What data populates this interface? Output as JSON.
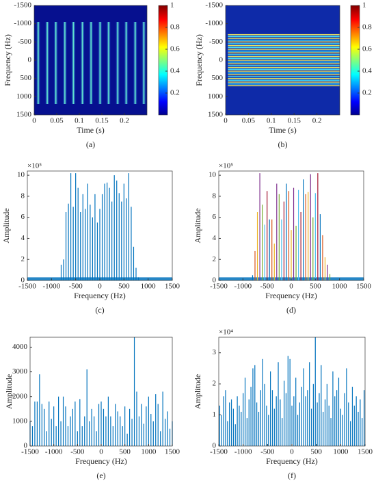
{
  "chart_data": [
    {
      "type": "heatmap",
      "label": "(a)",
      "xlabel": "Time (s)",
      "ylabel": "Frequency (Hz)",
      "xlim": [
        0,
        0.25
      ],
      "xticks": [
        0,
        0.05,
        0.1,
        0.15,
        0.2
      ],
      "ylim": [
        -1500,
        1500
      ],
      "yticks": [
        -1500,
        -1000,
        -500,
        0,
        500,
        1000,
        1500
      ],
      "y_reversed": true,
      "clim": [
        0,
        1
      ],
      "colorbar_ticks": [
        0.2,
        0.4,
        0.6,
        0.8,
        1
      ],
      "stripes_x": [
        0.009,
        0.029,
        0.048,
        0.068,
        0.087,
        0.107,
        0.126,
        0.146,
        0.165,
        0.185,
        0.204,
        0.224,
        0.243
      ],
      "stripe_frange": [
        -1050,
        1200
      ]
    },
    {
      "type": "heatmap",
      "label": "(b)",
      "xlabel": "Time (s)",
      "ylabel": "Frequency (Hz)",
      "xlim": [
        0,
        0.25
      ],
      "xticks": [
        0,
        0.05,
        0.1,
        0.15,
        0.2
      ],
      "ylim": [
        -1500,
        1500
      ],
      "yticks": [
        -1500,
        -1000,
        -500,
        0,
        500,
        1000,
        1500
      ],
      "y_reversed": true,
      "clim": [
        0,
        1
      ],
      "colorbar_ticks": [
        0.2,
        0.4,
        0.6,
        0.8,
        1
      ],
      "lines_y": [
        -700,
        -650,
        -600,
        -550,
        -500,
        -450,
        -400,
        -350,
        -300,
        -250,
        -200,
        -150,
        -100,
        -50,
        0,
        50,
        100,
        150,
        200,
        250,
        300,
        350,
        400,
        450,
        500,
        550,
        600,
        650,
        700
      ],
      "line_xrange": [
        0.005,
        0.25
      ]
    },
    {
      "type": "stem",
      "label": "(c)",
      "xlabel": "Frequency (Hz)",
      "ylabel": "Amplitude",
      "exponent_label": "×10⁵",
      "xlim": [
        -1500,
        1500
      ],
      "xticks": [
        -1500,
        -1000,
        -500,
        0,
        500,
        1000,
        1500
      ],
      "ylim": [
        0,
        10.4
      ],
      "yticks": [
        0,
        2,
        4,
        6,
        8,
        10
      ],
      "noise_floor": 0.3,
      "colors": [
        "#0072bd"
      ],
      "x": [
        -800,
        -750,
        -700,
        -650,
        -600,
        -550,
        -500,
        -450,
        -400,
        -350,
        -300,
        -250,
        -200,
        -150,
        -100,
        -50,
        0,
        50,
        100,
        150,
        200,
        250,
        300,
        350,
        400,
        450,
        500,
        550,
        600,
        650,
        700,
        750,
        800
      ],
      "values": [
        1.5,
        2,
        6.5,
        7.3,
        10.2,
        7,
        10.2,
        8.8,
        6.5,
        8.2,
        6.8,
        9.2,
        7.2,
        6,
        8.2,
        5.5,
        6.8,
        8.2,
        9.2,
        9.3,
        8.8,
        7.5,
        10,
        9.5,
        8.3,
        7.5,
        9.2,
        7.8,
        10.2,
        7,
        3.2,
        1.2,
        0.3
      ]
    },
    {
      "type": "stem",
      "label": "(d)",
      "xlabel": "Frequency (Hz)",
      "ylabel": "Amplitude",
      "exponent_label": "×10⁵",
      "xlim": [
        -1500,
        1500
      ],
      "xticks": [
        -1500,
        -1000,
        -500,
        0,
        500,
        1000,
        1500
      ],
      "ylim": [
        0,
        10.4
      ],
      "yticks": [
        0,
        2,
        4,
        6,
        8,
        10
      ],
      "noise_floor": 0.3,
      "colors": [
        "#0072bd",
        "#d95319",
        "#edb120",
        "#7e2f8e",
        "#77ac30",
        "#4dbeee",
        "#a2142f"
      ],
      "x": [
        -800,
        -750,
        -700,
        -650,
        -600,
        -550,
        -500,
        -450,
        -400,
        -350,
        -300,
        -250,
        -200,
        -150,
        -100,
        -50,
        0,
        50,
        100,
        150,
        200,
        250,
        300,
        350,
        400,
        450,
        500,
        550,
        600,
        650,
        700,
        750,
        800
      ],
      "values": [
        0.5,
        2.8,
        6.5,
        10.2,
        7.2,
        5.3,
        8.5,
        5.8,
        5.8,
        3.5,
        9.2,
        8.2,
        5.8,
        7.5,
        9.2,
        8.5,
        4.8,
        8.8,
        5.2,
        8.6,
        6.5,
        9.6,
        8.2,
        8.4,
        10.1,
        6,
        8.3,
        10.2,
        6.3,
        4.3,
        2.2,
        1.5,
        0.6
      ]
    },
    {
      "type": "stem",
      "label": "(e)",
      "xlabel": "Frequency (Hz)",
      "ylabel": "Amplitude",
      "xlim": [
        -1500,
        1500
      ],
      "xticks": [
        -1500,
        -1000,
        -500,
        0,
        500,
        1000,
        1500
      ],
      "ylim": [
        0,
        4400
      ],
      "yticks": [
        0,
        1000,
        2000,
        3000,
        4000
      ],
      "colors": [
        "#0072bd"
      ],
      "x": [
        -1500,
        -1450,
        -1400,
        -1350,
        -1300,
        -1250,
        -1200,
        -1150,
        -1100,
        -1050,
        -1000,
        -950,
        -900,
        -850,
        -800,
        -750,
        -700,
        -650,
        -600,
        -550,
        -500,
        -450,
        -400,
        -350,
        -300,
        -250,
        -200,
        -150,
        -100,
        -50,
        0,
        50,
        100,
        150,
        200,
        250,
        300,
        350,
        400,
        450,
        500,
        550,
        600,
        650,
        700,
        750,
        800,
        850,
        900,
        950,
        1000,
        1050,
        1100,
        1150,
        1200,
        1250,
        1300,
        1350,
        1400,
        1450,
        1500
      ],
      "values": [
        1000,
        800,
        1800,
        1800,
        2900,
        1700,
        1500,
        600,
        1800,
        1100,
        1600,
        800,
        2000,
        1000,
        2000,
        1600,
        800,
        1200,
        1500,
        1800,
        600,
        1900,
        800,
        1200,
        3100,
        1000,
        1500,
        1200,
        600,
        1700,
        1800,
        1500,
        1200,
        2000,
        1200,
        800,
        1700,
        1400,
        1200,
        800,
        1600,
        500,
        1500,
        1100,
        4400,
        2200,
        1200,
        1700,
        900,
        1600,
        2000,
        1300,
        1000,
        2100,
        1700,
        600,
        2200,
        1100,
        1400,
        700,
        1000
      ]
    },
    {
      "type": "stem",
      "label": "(f)",
      "xlabel": "Frequency (Hz)",
      "ylabel": "Amplitude",
      "exponent_label": "×10⁴",
      "xlim": [
        -1500,
        1500
      ],
      "xticks": [
        -1500,
        -1000,
        -500,
        0,
        500,
        1000,
        1500
      ],
      "ylim": [
        0,
        3.5
      ],
      "yticks": [
        0,
        1,
        2,
        3
      ],
      "colors": [
        "#0072bd"
      ],
      "x": [
        -1480,
        -1440,
        -1400,
        -1360,
        -1320,
        -1280,
        -1240,
        -1200,
        -1160,
        -1120,
        -1080,
        -1040,
        -1000,
        -960,
        -920,
        -880,
        -840,
        -800,
        -760,
        -720,
        -680,
        -640,
        -600,
        -560,
        -520,
        -480,
        -440,
        -400,
        -360,
        -320,
        -280,
        -240,
        -200,
        -160,
        -120,
        -80,
        -40,
        0,
        40,
        80,
        120,
        160,
        200,
        240,
        280,
        320,
        360,
        400,
        440,
        480,
        520,
        560,
        600,
        640,
        680,
        720,
        760,
        800,
        840,
        880,
        920,
        960,
        1000,
        1040,
        1080,
        1120,
        1160,
        1200,
        1240,
        1280,
        1320,
        1360,
        1400,
        1440,
        1480
      ],
      "values": [
        1.3,
        1.0,
        1.6,
        1.8,
        0.8,
        1.4,
        1.5,
        1.2,
        0.7,
        1.6,
        1.3,
        1.1,
        1.7,
        2.2,
        0.9,
        1.5,
        1.9,
        2.5,
        2.6,
        1.4,
        1.1,
        1.8,
        2.8,
        2.0,
        1.3,
        1.0,
        2.4,
        1.8,
        1.2,
        1.6,
        2.7,
        1.5,
        0.9,
        2.1,
        1.7,
        2.9,
        2.8,
        1.3,
        1.6,
        2.2,
        1.0,
        1.4,
        1.9,
        2.5,
        1.6,
        1.8,
        2.7,
        1.2,
        2.0,
        3.5,
        1.4,
        1.7,
        2.6,
        1.1,
        1.5,
        2.0,
        1.3,
        0.9,
        2.4,
        1.6,
        1.8,
        2.2,
        1.2,
        1.0,
        1.7,
        2.5,
        1.4,
        0.8,
        1.9,
        1.3,
        1.6,
        1.1,
        1.5,
        0.9,
        1.8
      ]
    }
  ]
}
